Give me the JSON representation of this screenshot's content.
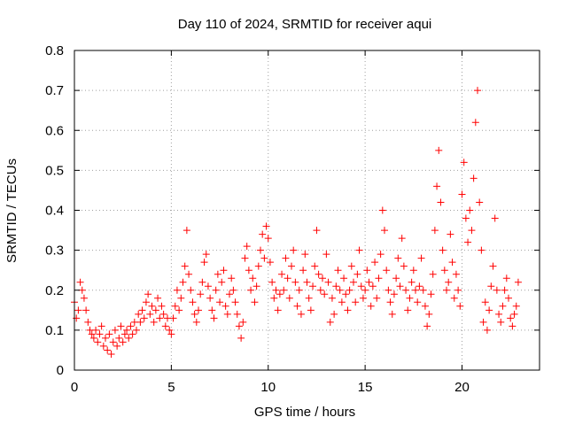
{
  "chart_data": {
    "type": "scatter",
    "title": "Day 110 of 2024, SRMTID for receiver aqui",
    "xlabel": "GPS time / hours",
    "ylabel": "SRMTID / TECUs",
    "xlim": [
      0,
      24
    ],
    "ylim": [
      0,
      0.8
    ],
    "xticks": [
      0,
      5,
      10,
      15,
      20
    ],
    "xtick_labels": [
      "0",
      "5",
      "10",
      "15",
      "20"
    ],
    "yticks": [
      0,
      0.1,
      0.2,
      0.3,
      0.4,
      0.5,
      0.6,
      0.7,
      0.8
    ],
    "ytick_labels": [
      "0",
      "0.1",
      "0.2",
      "0.3",
      "0.4",
      "0.5",
      "0.6",
      "0.7",
      "0.8"
    ],
    "grid": true,
    "marker": "+",
    "color": "#ff0000",
    "series": [
      {
        "name": "SRMTID",
        "points": [
          [
            0.0,
            0.17
          ],
          [
            0.1,
            0.13
          ],
          [
            0.2,
            0.15
          ],
          [
            0.3,
            0.22
          ],
          [
            0.4,
            0.2
          ],
          [
            0.5,
            0.18
          ],
          [
            0.6,
            0.15
          ],
          [
            0.7,
            0.12
          ],
          [
            0.8,
            0.1
          ],
          [
            0.9,
            0.09
          ],
          [
            1.0,
            0.08
          ],
          [
            1.1,
            0.1
          ],
          [
            1.2,
            0.07
          ],
          [
            1.3,
            0.09
          ],
          [
            1.4,
            0.11
          ],
          [
            1.5,
            0.06
          ],
          [
            1.6,
            0.08
          ],
          [
            1.7,
            0.05
          ],
          [
            1.8,
            0.09
          ],
          [
            1.9,
            0.04
          ],
          [
            2.0,
            0.07
          ],
          [
            2.1,
            0.1
          ],
          [
            2.2,
            0.06
          ],
          [
            2.3,
            0.08
          ],
          [
            2.4,
            0.11
          ],
          [
            2.5,
            0.07
          ],
          [
            2.6,
            0.09
          ],
          [
            2.7,
            0.1
          ],
          [
            2.8,
            0.08
          ],
          [
            2.9,
            0.11
          ],
          [
            3.0,
            0.09
          ],
          [
            3.1,
            0.12
          ],
          [
            3.2,
            0.1
          ],
          [
            3.3,
            0.14
          ],
          [
            3.4,
            0.12
          ],
          [
            3.5,
            0.15
          ],
          [
            3.6,
            0.13
          ],
          [
            3.7,
            0.17
          ],
          [
            3.8,
            0.19
          ],
          [
            3.9,
            0.14
          ],
          [
            4.0,
            0.16
          ],
          [
            4.1,
            0.12
          ],
          [
            4.2,
            0.15
          ],
          [
            4.3,
            0.18
          ],
          [
            4.4,
            0.13
          ],
          [
            4.5,
            0.16
          ],
          [
            4.6,
            0.14
          ],
          [
            4.7,
            0.11
          ],
          [
            4.8,
            0.13
          ],
          [
            4.9,
            0.1
          ],
          [
            5.0,
            0.09
          ],
          [
            5.1,
            0.13
          ],
          [
            5.2,
            0.16
          ],
          [
            5.3,
            0.2
          ],
          [
            5.4,
            0.15
          ],
          [
            5.5,
            0.18
          ],
          [
            5.6,
            0.22
          ],
          [
            5.7,
            0.26
          ],
          [
            5.8,
            0.35
          ],
          [
            5.9,
            0.24
          ],
          [
            6.0,
            0.2
          ],
          [
            6.1,
            0.17
          ],
          [
            6.2,
            0.14
          ],
          [
            6.3,
            0.12
          ],
          [
            6.4,
            0.15
          ],
          [
            6.5,
            0.19
          ],
          [
            6.6,
            0.22
          ],
          [
            6.7,
            0.27
          ],
          [
            6.8,
            0.29
          ],
          [
            6.9,
            0.21
          ],
          [
            7.0,
            0.18
          ],
          [
            7.1,
            0.15
          ],
          [
            7.2,
            0.13
          ],
          [
            7.3,
            0.2
          ],
          [
            7.4,
            0.24
          ],
          [
            7.5,
            0.17
          ],
          [
            7.6,
            0.22
          ],
          [
            7.7,
            0.25
          ],
          [
            7.8,
            0.16
          ],
          [
            7.9,
            0.14
          ],
          [
            8.0,
            0.19
          ],
          [
            8.1,
            0.23
          ],
          [
            8.2,
            0.2
          ],
          [
            8.3,
            0.17
          ],
          [
            8.4,
            0.14
          ],
          [
            8.5,
            0.11
          ],
          [
            8.6,
            0.08
          ],
          [
            8.7,
            0.12
          ],
          [
            8.8,
            0.28
          ],
          [
            8.9,
            0.31
          ],
          [
            9.0,
            0.25
          ],
          [
            9.1,
            0.2
          ],
          [
            9.2,
            0.23
          ],
          [
            9.3,
            0.17
          ],
          [
            9.4,
            0.21
          ],
          [
            9.5,
            0.26
          ],
          [
            9.6,
            0.3
          ],
          [
            9.7,
            0.34
          ],
          [
            9.8,
            0.28
          ],
          [
            9.9,
            0.36
          ],
          [
            10.0,
            0.33
          ],
          [
            10.1,
            0.27
          ],
          [
            10.2,
            0.22
          ],
          [
            10.3,
            0.18
          ],
          [
            10.4,
            0.2
          ],
          [
            10.5,
            0.15
          ],
          [
            10.6,
            0.19
          ],
          [
            10.7,
            0.24
          ],
          [
            10.8,
            0.2
          ],
          [
            10.9,
            0.28
          ],
          [
            11.0,
            0.23
          ],
          [
            11.1,
            0.18
          ],
          [
            11.2,
            0.26
          ],
          [
            11.3,
            0.3
          ],
          [
            11.4,
            0.22
          ],
          [
            11.5,
            0.16
          ],
          [
            11.6,
            0.2
          ],
          [
            11.7,
            0.14
          ],
          [
            11.8,
            0.25
          ],
          [
            11.9,
            0.29
          ],
          [
            12.0,
            0.22
          ],
          [
            12.1,
            0.18
          ],
          [
            12.2,
            0.15
          ],
          [
            12.3,
            0.21
          ],
          [
            12.4,
            0.26
          ],
          [
            12.5,
            0.35
          ],
          [
            12.6,
            0.24
          ],
          [
            12.7,
            0.2
          ],
          [
            12.8,
            0.23
          ],
          [
            12.9,
            0.19
          ],
          [
            13.0,
            0.29
          ],
          [
            13.1,
            0.22
          ],
          [
            13.2,
            0.12
          ],
          [
            13.3,
            0.18
          ],
          [
            13.4,
            0.14
          ],
          [
            13.5,
            0.21
          ],
          [
            13.6,
            0.25
          ],
          [
            13.7,
            0.2
          ],
          [
            13.8,
            0.17
          ],
          [
            13.9,
            0.23
          ],
          [
            14.0,
            0.19
          ],
          [
            14.1,
            0.15
          ],
          [
            14.2,
            0.2
          ],
          [
            14.3,
            0.26
          ],
          [
            14.4,
            0.22
          ],
          [
            14.5,
            0.17
          ],
          [
            14.6,
            0.24
          ],
          [
            14.7,
            0.3
          ],
          [
            14.8,
            0.21
          ],
          [
            14.9,
            0.18
          ],
          [
            15.0,
            0.2
          ],
          [
            15.1,
            0.25
          ],
          [
            15.2,
            0.22
          ],
          [
            15.3,
            0.16
          ],
          [
            15.4,
            0.21
          ],
          [
            15.5,
            0.27
          ],
          [
            15.6,
            0.18
          ],
          [
            15.7,
            0.23
          ],
          [
            15.8,
            0.29
          ],
          [
            15.9,
            0.4
          ],
          [
            16.0,
            0.35
          ],
          [
            16.1,
            0.25
          ],
          [
            16.2,
            0.2
          ],
          [
            16.3,
            0.17
          ],
          [
            16.4,
            0.14
          ],
          [
            16.5,
            0.19
          ],
          [
            16.6,
            0.23
          ],
          [
            16.7,
            0.28
          ],
          [
            16.8,
            0.21
          ],
          [
            16.9,
            0.33
          ],
          [
            17.0,
            0.26
          ],
          [
            17.1,
            0.2
          ],
          [
            17.2,
            0.15
          ],
          [
            17.3,
            0.18
          ],
          [
            17.4,
            0.22
          ],
          [
            17.5,
            0.25
          ],
          [
            17.6,
            0.2
          ],
          [
            17.7,
            0.17
          ],
          [
            17.8,
            0.21
          ],
          [
            17.9,
            0.28
          ],
          [
            18.0,
            0.2
          ],
          [
            18.1,
            0.16
          ],
          [
            18.2,
            0.11
          ],
          [
            18.3,
            0.14
          ],
          [
            18.4,
            0.19
          ],
          [
            18.5,
            0.24
          ],
          [
            18.6,
            0.35
          ],
          [
            18.7,
            0.46
          ],
          [
            18.8,
            0.55
          ],
          [
            18.9,
            0.42
          ],
          [
            19.0,
            0.3
          ],
          [
            19.1,
            0.25
          ],
          [
            19.2,
            0.2
          ],
          [
            19.3,
            0.22
          ],
          [
            19.4,
            0.34
          ],
          [
            19.5,
            0.27
          ],
          [
            19.6,
            0.18
          ],
          [
            19.7,
            0.24
          ],
          [
            19.8,
            0.2
          ],
          [
            19.9,
            0.16
          ],
          [
            20.0,
            0.44
          ],
          [
            20.1,
            0.52
          ],
          [
            20.2,
            0.38
          ],
          [
            20.3,
            0.32
          ],
          [
            20.4,
            0.4
          ],
          [
            20.5,
            0.35
          ],
          [
            20.6,
            0.48
          ],
          [
            20.7,
            0.62
          ],
          [
            20.8,
            0.7
          ],
          [
            20.9,
            0.42
          ],
          [
            21.0,
            0.3
          ],
          [
            21.1,
            0.12
          ],
          [
            21.2,
            0.17
          ],
          [
            21.3,
            0.1
          ],
          [
            21.4,
            0.15
          ],
          [
            21.5,
            0.21
          ],
          [
            21.6,
            0.26
          ],
          [
            21.7,
            0.38
          ],
          [
            21.8,
            0.2
          ],
          [
            21.9,
            0.14
          ],
          [
            22.0,
            0.12
          ],
          [
            22.1,
            0.16
          ],
          [
            22.2,
            0.2
          ],
          [
            22.3,
            0.23
          ],
          [
            22.4,
            0.18
          ],
          [
            22.5,
            0.13
          ],
          [
            22.6,
            0.11
          ],
          [
            22.7,
            0.14
          ],
          [
            22.8,
            0.16
          ],
          [
            22.9,
            0.22
          ]
        ]
      }
    ]
  }
}
